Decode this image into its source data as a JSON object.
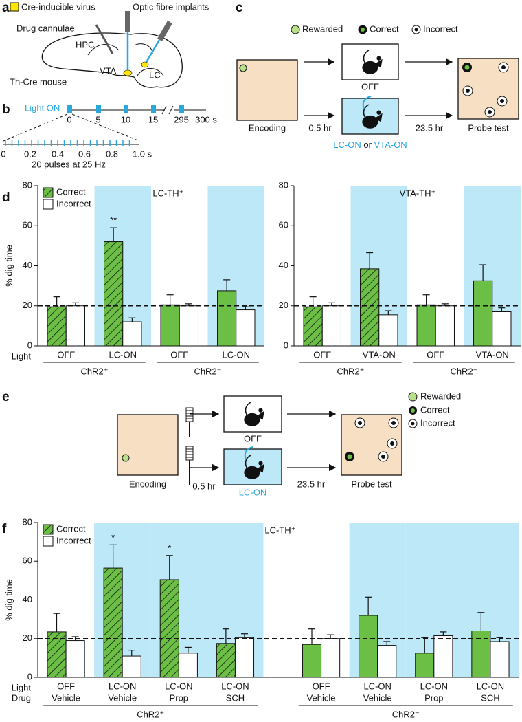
{
  "panel_labels": [
    "a",
    "b",
    "c",
    "d",
    "e",
    "f"
  ],
  "panel_a": {
    "legend": "Cre-inducible virus",
    "implants": "Optic fibre implants",
    "cannulae": "Drug cannulae",
    "hpc": "HPC",
    "vta": "VTA",
    "lc": "LC",
    "mouse": "Th-Cre mouse"
  },
  "panel_b": {
    "light_on": "Light ON",
    "top_ticks": [
      "0",
      "5",
      "10",
      "15",
      "295",
      "300 s"
    ],
    "bottom_ticks": [
      "0",
      "0.2",
      "0.4",
      "0.6",
      "0.8",
      "1.0 s"
    ],
    "caption": "20 pulses at 25 Hz"
  },
  "panel_c": {
    "legend": [
      "Rewarded",
      "Correct",
      "Incorrect"
    ],
    "encoding": "Encoding",
    "off": "OFF",
    "delay_1": "0.5 hr",
    "delay_2": "23.5 hr",
    "probe": "Probe test",
    "on_1": "LC-ON",
    "or": "or",
    "on_2": "VTA-ON"
  },
  "panel_e": {
    "legend": [
      "Rewarded",
      "Correct",
      "Incorrect"
    ],
    "encoding": "Encoding",
    "off": "OFF",
    "delay_1": "0.5 hr",
    "delay_2": "23.5 hr",
    "probe": "Probe test",
    "on": "LC-ON"
  },
  "chart_data": [
    {
      "type": "bar",
      "title": "LC-TH⁺",
      "y_label": "% dig time",
      "light_label": "Light",
      "categories": [
        "OFF",
        "LC-ON",
        "OFF",
        "LC-ON"
      ],
      "groups": [
        "ChR2⁺",
        "ChR2⁻"
      ],
      "shaded": [
        false,
        true,
        false,
        true
      ],
      "series": [
        {
          "name": "Correct",
          "color": "#6cbf45",
          "hatch": [
            true,
            true,
            false,
            false
          ],
          "values": [
            19.5,
            52,
            20.5,
            27.5
          ],
          "errors": [
            5,
            7,
            5,
            5.5
          ]
        },
        {
          "name": "Incorrect",
          "color": "#ffffff",
          "values": [
            20,
            12,
            20,
            18
          ],
          "errors": [
            1.5,
            2,
            1,
            1.5
          ]
        }
      ],
      "annotations": [
        null,
        "**",
        null,
        null
      ],
      "reference_line": 20,
      "ylim": [
        0,
        80
      ],
      "yticks": [
        0,
        20,
        40,
        60,
        80
      ],
      "legend": "upper left",
      "shade_color": "#bde8f8",
      "highlight_color": "#27a8e0"
    },
    {
      "type": "bar",
      "title": "VTA-TH⁺",
      "categories": [
        "OFF",
        "VTA-ON",
        "OFF",
        "VTA-ON"
      ],
      "groups": [
        "ChR2⁺",
        "ChR2⁻"
      ],
      "shaded": [
        false,
        true,
        false,
        true
      ],
      "series": [
        {
          "color": "#6cbf45",
          "hatch": [
            true,
            true,
            false,
            false
          ],
          "values": [
            19.5,
            38.5,
            20.5,
            32.5
          ],
          "errors": [
            5,
            8,
            5,
            8
          ]
        },
        {
          "color": "#ffffff",
          "values": [
            20,
            15.5,
            20,
            17
          ],
          "errors": [
            1.5,
            2,
            1,
            2
          ]
        }
      ],
      "reference_line": 20,
      "ylim": [
        0,
        80
      ],
      "yticks": [
        0,
        20,
        40,
        60,
        80
      ],
      "shade_color": "#bde8f8",
      "highlight_color": "#27a8e0"
    },
    {
      "type": "bar",
      "title": "LC-TH⁺",
      "y_label": "% dig time",
      "light_label": "Light",
      "drug_label": "Drug",
      "categories": [
        "OFF",
        "LC-ON",
        "LC-ON",
        "LC-ON",
        "OFF",
        "LC-ON",
        "LC-ON",
        "LC-ON"
      ],
      "drugs": [
        "Vehicle",
        "Vehicle",
        "Prop",
        "SCH",
        "Vehicle",
        "Vehicle",
        "Prop",
        "SCH"
      ],
      "groups": [
        "ChR2⁺",
        "ChR2⁻"
      ],
      "shaded": [
        false,
        true,
        true,
        true,
        false,
        true,
        true,
        true
      ],
      "series": [
        {
          "name": "Correct",
          "color": "#6cbf45",
          "hatch": [
            true,
            true,
            true,
            true,
            false,
            false,
            false,
            false
          ],
          "values": [
            23.5,
            56.5,
            50.5,
            17.5,
            17,
            32,
            12.5,
            24
          ],
          "errors": [
            9.5,
            12,
            12.5,
            7.5,
            8,
            9.5,
            8,
            9.5
          ]
        },
        {
          "name": "Incorrect",
          "color": "#ffffff",
          "values": [
            19,
            11,
            12.5,
            20.5,
            20,
            16.5,
            21.5,
            18.5
          ],
          "errors": [
            2,
            3,
            3,
            2,
            2,
            2,
            2,
            2
          ]
        }
      ],
      "annotations": [
        null,
        "*",
        "*",
        null,
        null,
        null,
        null,
        null
      ],
      "reference_line": 20,
      "ylim": [
        0,
        80
      ],
      "yticks": [
        0,
        20,
        40,
        60,
        80
      ],
      "legend": "upper left",
      "shade_color": "#bde8f8",
      "highlight_color": "#27a8e0"
    }
  ]
}
